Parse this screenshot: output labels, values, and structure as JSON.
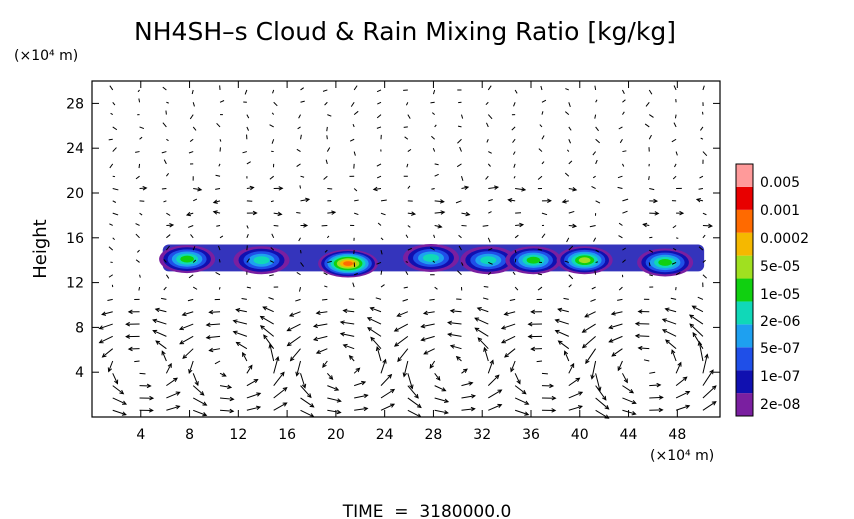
{
  "chart_data": {
    "type": "heatmap",
    "title": "NH4SH–s Cloud & Rain Mixing Ratio [kg/kg]",
    "ylabel": "Height",
    "y_unit": "(×10⁴ m)",
    "x_unit": "(×10⁴ m)",
    "xlim": [
      0,
      51.5
    ],
    "ylim": [
      0,
      30
    ],
    "x_ticks": [
      4,
      8,
      12,
      16,
      20,
      24,
      28,
      32,
      36,
      40,
      44,
      48
    ],
    "y_ticks": [
      4,
      8,
      12,
      16,
      20,
      24,
      28
    ],
    "colorbar_levels": [
      "2e-08",
      "1e-07",
      "5e-07",
      "2e-06",
      "1e-05",
      "5e-05",
      "0.0002",
      "0.001",
      "0.005"
    ],
    "colorbar_colors": [
      "#7a1fa0",
      "#1010b0",
      "#1f4fe8",
      "#1ea0f0",
      "#10d8b8",
      "#10d010",
      "#a0e020",
      "#f5b800",
      "#ff6a00",
      "#e80000",
      "#ff9a9a"
    ],
    "cells": [
      {
        "x": 7.8,
        "y": 14.1,
        "max": "5e-05"
      },
      {
        "x": 13.9,
        "y": 14.0,
        "max": "1e-05"
      },
      {
        "x": 21.0,
        "y": 13.7,
        "max": "0.001"
      },
      {
        "x": 27.8,
        "y": 14.2,
        "max": "1e-05"
      },
      {
        "x": 32.5,
        "y": 14.0,
        "max": "1e-05"
      },
      {
        "x": 36.2,
        "y": 14.0,
        "max": "5e-05"
      },
      {
        "x": 40.4,
        "y": 14.0,
        "max": "0.0002"
      },
      {
        "x": 47.0,
        "y": 13.8,
        "max": "5e-05"
      }
    ],
    "layer_range": [
      12.6,
      16.0
    ],
    "grid": false,
    "legend": "right"
  },
  "footer": {
    "time_label": "TIME  =  3180000.0"
  }
}
